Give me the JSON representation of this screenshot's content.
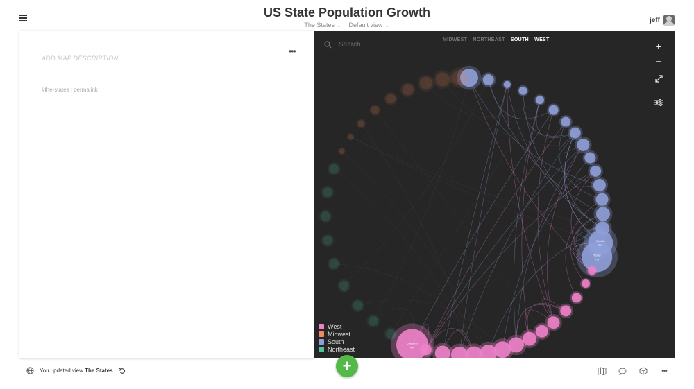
{
  "header": {
    "title": "US State Population Growth",
    "project_label": "The States ⌄",
    "view_label": "Default view ⌄",
    "user_name": "jeff"
  },
  "left_panel": {
    "add_description": "ADD MAP DESCRIPTION",
    "hashtag_link": "#the-states",
    "separator": " | ",
    "permalink": "permalink"
  },
  "map": {
    "search_placeholder": "Search",
    "filters": [
      {
        "label": "MIDWEST",
        "active": false
      },
      {
        "label": "NORTHEAST",
        "active": false
      },
      {
        "label": "SOUTH",
        "active": true
      },
      {
        "label": "WEST",
        "active": true
      }
    ],
    "legend": [
      {
        "label": "West",
        "color": "#ee82c9"
      },
      {
        "label": "Midwest",
        "color": "#f0895f"
      },
      {
        "label": "South",
        "color": "#8f9fd8"
      },
      {
        "label": "Northeast",
        "color": "#4fc29a"
      }
    ],
    "node_labels": {
      "california": "California",
      "california_value": "4%",
      "texas": "Texas",
      "texas_value": "7%",
      "florida": "Florida",
      "florida_value": "5%"
    },
    "colors": {
      "background": "#262626",
      "west": "#ee82c9",
      "midwest": "#f0895f",
      "south": "#8f9fd8",
      "northeast": "#4fc29a"
    }
  },
  "footer": {
    "status_prefix": "You updated view ",
    "status_view": "The States",
    "fab_label": "+"
  },
  "icons": {
    "menu": "hamburger-icon",
    "globe": "globe-icon",
    "undo": "undo-icon",
    "map": "map-icon",
    "comment": "comment-icon",
    "cube": "cube-icon",
    "more": "more-icon"
  }
}
